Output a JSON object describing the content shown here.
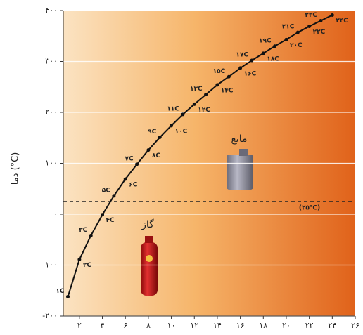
{
  "chart_data": {
    "type": "line",
    "y_label": "دما (°C)",
    "x": [
      1,
      2,
      3,
      4,
      5,
      6,
      7,
      8,
      9,
      10,
      11,
      12,
      13,
      14,
      15,
      16,
      17,
      18,
      19,
      20,
      21,
      22,
      23,
      24
    ],
    "series": [
      {
        "color": "#111111",
        "values": [
          -162,
          -89,
          -42,
          -1,
          36,
          69,
          98,
          126,
          151,
          174,
          196,
          216,
          235,
          254,
          270,
          287,
          302,
          316,
          330,
          343,
          357,
          369,
          380,
          391
        ]
      }
    ],
    "point_labels": [
      "۱C",
      "۲C",
      "۳C",
      "۴C",
      "۵C",
      "۶C",
      "۷C",
      "۸C",
      "۹C",
      "۱۰C",
      "۱۱C",
      "۱۲C",
      "۱۳C",
      "۱۴C",
      "۱۵C",
      "۱۶C",
      "۱۷C",
      "۱۸C",
      "۱۹C",
      "۲۰C",
      "۲۱C",
      "۲۲C",
      "۲۳C",
      "۲۴C"
    ],
    "xlim": [
      0.6,
      26
    ],
    "xticks": [
      {
        "value": 2,
        "label": "۲"
      },
      {
        "value": 4,
        "label": "۴"
      },
      {
        "value": 6,
        "label": "۶"
      },
      {
        "value": 8,
        "label": "۸"
      },
      {
        "value": 10,
        "label": "۱۰"
      },
      {
        "value": 12,
        "label": "۱۲"
      },
      {
        "value": 14,
        "label": "۱۴"
      },
      {
        "value": 16,
        "label": "۱۶"
      },
      {
        "value": 18,
        "label": "۱۸"
      },
      {
        "value": 20,
        "label": "۲۰"
      },
      {
        "value": 22,
        "label": "۲۲"
      },
      {
        "value": 24,
        "label": "۲۴"
      },
      {
        "value": 26,
        "label": "۲۶"
      }
    ],
    "ylim": [
      -200,
      400
    ],
    "yticks": [
      {
        "value": -200,
        "label": "-۲۰۰"
      },
      {
        "value": -100,
        "label": "-۱۰۰"
      },
      {
        "value": 0,
        "label": "۰"
      },
      {
        "value": 100,
        "label": "۱۰۰"
      },
      {
        "value": 200,
        "label": "۲۰۰"
      },
      {
        "value": 300,
        "label": "۳۰۰"
      },
      {
        "value": 400,
        "label": "۴۰۰"
      }
    ],
    "grid": true,
    "ref_line": {
      "value": 25,
      "label": "(۲۵°C)"
    },
    "annotations": {
      "liquid": "مایع",
      "gas": "گاز"
    }
  }
}
